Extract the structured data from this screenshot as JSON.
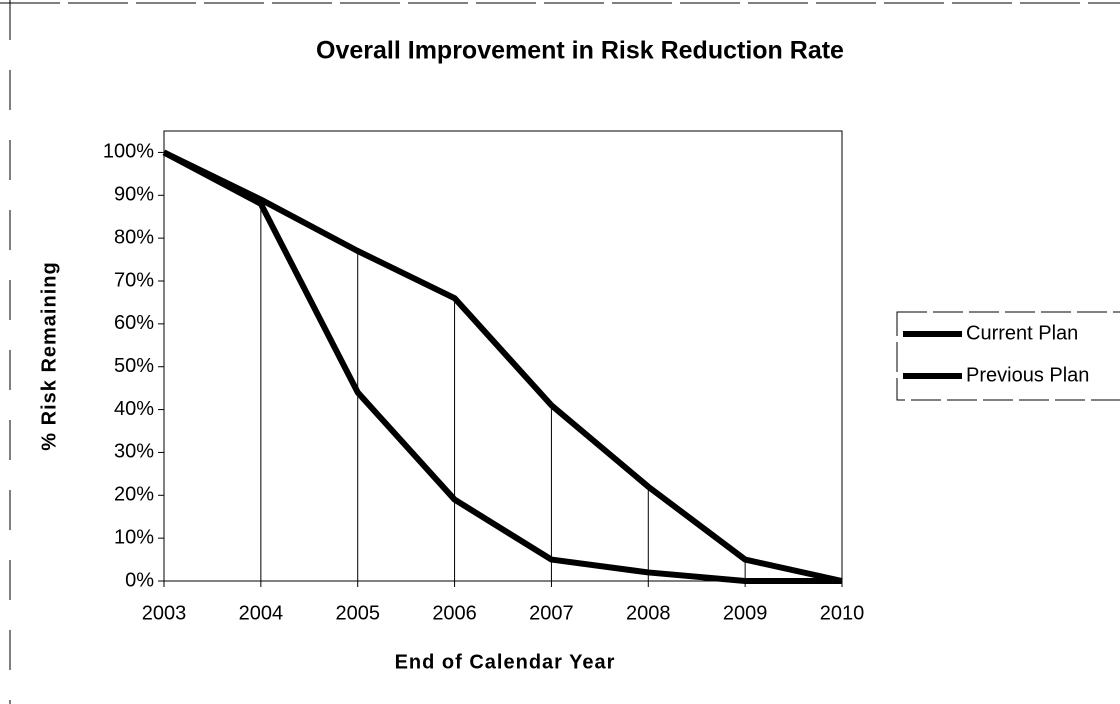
{
  "chart_data": {
    "type": "line",
    "title": "Overall Improvement in Risk Reduction Rate",
    "x_label": "End of Calendar Year",
    "y_label": "% Risk Remaining",
    "x": [
      2003,
      2004,
      2005,
      2006,
      2007,
      2008,
      2009,
      2010
    ],
    "series": [
      {
        "name": "Current Plan",
        "color": "#000000",
        "values": [
          100,
          88,
          44,
          19,
          5,
          2,
          0,
          0
        ]
      },
      {
        "name": "Previous Plan",
        "color": "#000000",
        "values": [
          100,
          89,
          77,
          66,
          41,
          22,
          5,
          0
        ]
      }
    ],
    "xlim": [
      2003,
      2010
    ],
    "xticks": [
      2003,
      2004,
      2005,
      2006,
      2007,
      2008,
      2009,
      2010
    ],
    "ylim": [
      0,
      105
    ],
    "yticks": [
      {
        "value": 0,
        "label": "0%"
      },
      {
        "value": 10,
        "label": "10%"
      },
      {
        "value": 20,
        "label": "20%"
      },
      {
        "value": 30,
        "label": "30%"
      },
      {
        "value": 40,
        "label": "40%"
      },
      {
        "value": 50,
        "label": "50%"
      },
      {
        "value": 60,
        "label": "60%"
      },
      {
        "value": 70,
        "label": "70%"
      },
      {
        "value": 80,
        "label": "80%"
      },
      {
        "value": 90,
        "label": "90%"
      },
      {
        "value": 100,
        "label": "100%"
      }
    ],
    "drop_lines": true,
    "legend": "right"
  }
}
